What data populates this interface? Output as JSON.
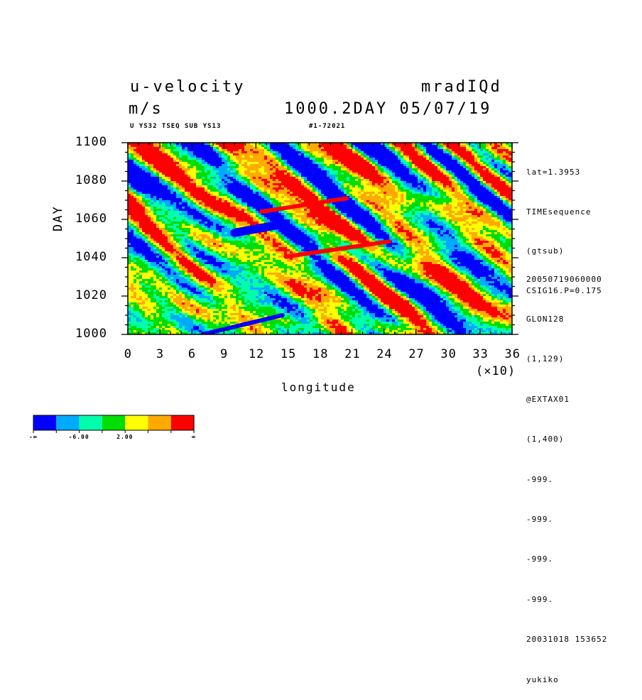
{
  "header": {
    "title_left": "u-velocity",
    "title_right": "mradIQd",
    "units": "m/s",
    "time_date": "1000.2DAY 05/07/19",
    "sub_left": "U YS32 TSEQ SUB YS13",
    "sub_right": "#1-72021"
  },
  "side_info": {
    "top": [
      "lat=1.3953",
      "TIMEsequence",
      "(gtsub)",
      "CSIG16.P=0.175"
    ],
    "bottom": [
      "20050719060000",
      "GLON128",
      "(1,129)",
      "@EXTAX01",
      "(1,400)",
      "-999.",
      "-999.",
      "-999.",
      "-999.",
      "20031018 153652",
      "yukiko"
    ]
  },
  "colorbar": {
    "colors": [
      "#0000ff",
      "#00aaff",
      "#00ffaa",
      "#00dd00",
      "#ffff00",
      "#ffaa00",
      "#ff0000"
    ],
    "labels": [
      "-∞",
      "-6.00",
      "2.00",
      "∞"
    ]
  },
  "chart_data": {
    "type": "heatmap",
    "title": "u-velocity",
    "xlabel": "longitude",
    "ylabel": "DAY",
    "x_multiplier": "(×10)",
    "xlim": [
      0,
      36
    ],
    "ylim": [
      1000,
      1100
    ],
    "x_ticks": [
      "0",
      "3",
      "6",
      "9",
      "12",
      "15",
      "18",
      "21",
      "24",
      "27",
      "30",
      "33",
      "36"
    ],
    "y_ticks": [
      "1000",
      "1020",
      "1040",
      "1060",
      "1080",
      "1100"
    ],
    "levels": [
      "-∞",
      "-6.00",
      "2.00",
      "∞"
    ],
    "features": [
      {
        "type": "positive-streak",
        "x": [
          14.8,
          24.5
        ],
        "y": [
          1040.5,
          1048.5
        ]
      },
      {
        "type": "positive-streak",
        "x": [
          12.5,
          20.5
        ],
        "y": [
          1064,
          1071
        ]
      },
      {
        "type": "negative-patch",
        "x": [
          10,
          14
        ],
        "y": [
          1053,
          1057
        ]
      },
      {
        "type": "negative-streak",
        "x": [
          7,
          14.5
        ],
        "y": [
          1000,
          1010
        ]
      }
    ]
  }
}
